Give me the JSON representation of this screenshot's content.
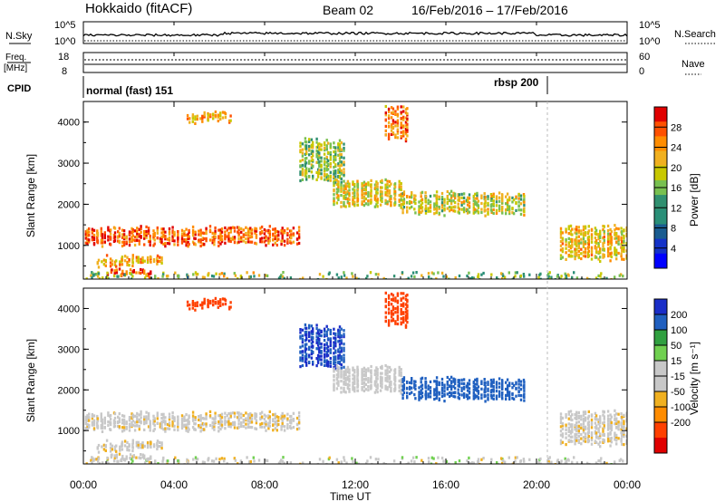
{
  "header": {
    "station": "Hokkaido (fitACF)",
    "beam": "Beam 02",
    "dates": "16/Feb/2016 – 17/Feb/2016"
  },
  "nsky": {
    "label": "N.Sky",
    "right_label": "N.Search",
    "ticks": [
      "10^5",
      "10^0"
    ],
    "right_ticks": [
      "10^5",
      "10^0"
    ]
  },
  "freq": {
    "label_line1": "Freq.",
    "label_line2": "[MHz]",
    "ticks": [
      "18",
      "8"
    ],
    "right_label": "Nave",
    "right_ticks": [
      "60",
      "0"
    ]
  },
  "cpid": {
    "label": "CPID",
    "segments": [
      {
        "name": "normal (fast) 151",
        "start_hour": 0
      },
      {
        "name": "rbsp 200",
        "start_hour": 20
      }
    ]
  },
  "power_panel": {
    "ylabel": "Slant Range [km]",
    "yticks": [
      "4000",
      "3000",
      "2000",
      "1000"
    ],
    "colorbar": {
      "label": "Power [dB]",
      "ticks": [
        "28",
        "24",
        "20",
        "16",
        "12",
        "8",
        "4"
      ],
      "colors": [
        "#e00000",
        "#ff5000",
        "#ff8c00",
        "#f0b020",
        "#c8c800",
        "#78c050",
        "#309070",
        "#2a8f78",
        "#1a5c90",
        "#1432c8",
        "#0000ff"
      ]
    }
  },
  "velocity_panel": {
    "ylabel": "Slant Range [km]",
    "yticks": [
      "4000",
      "3000",
      "2000",
      "1000"
    ],
    "colorbar": {
      "label": "Velocity [m s⁻¹]",
      "ticks": [
        "200",
        "100",
        "50",
        "15",
        "-15",
        "-50",
        "-100",
        "-200"
      ],
      "colors": [
        "#1a2ec8",
        "#2060c0",
        "#30a040",
        "#70d050",
        "#c8c8c8",
        "#c8c8c8",
        "#f0b020",
        "#ff8c00",
        "#ff4000",
        "#e00000"
      ]
    }
  },
  "xaxis": {
    "label": "Time UT",
    "ticks": [
      "00:00",
      "04:00",
      "08:00",
      "12:00",
      "16:00",
      "20:00",
      "00:00"
    ]
  },
  "chart_data": {
    "type": "heatmap",
    "title": "Hokkaido (fitACF) Beam 02 16/Feb/2016 – 17/Feb/2016",
    "xlabel": "Time UT",
    "ylabel": "Slant Range [km]",
    "x_range_hours": [
      0,
      24
    ],
    "y_range_km": [
      180,
      4500
    ],
    "power_range_db": [
      0,
      30
    ],
    "velocity_range_ms": [
      -250,
      250
    ],
    "echo_bands": [
      {
        "t0": 0.0,
        "t1": 9.5,
        "r0": 1050,
        "r1": 1450,
        "power": 25,
        "velocity": -5
      },
      {
        "t0": 0.5,
        "t1": 3.5,
        "r0": 550,
        "r1": 750,
        "power": 21,
        "velocity": -5
      },
      {
        "t0": 1.0,
        "t1": 3.0,
        "r0": 300,
        "r1": 400,
        "power": 27,
        "velocity": -5
      },
      {
        "t0": 4.5,
        "t1": 6.5,
        "r0": 4050,
        "r1": 4250,
        "power": 21,
        "velocity": -150
      },
      {
        "t0": 9.5,
        "t1": 11.5,
        "r0": 2600,
        "r1": 3600,
        "power": 16,
        "velocity": 200
      },
      {
        "t0": 11.0,
        "t1": 14.0,
        "r0": 2000,
        "r1": 2600,
        "power": 19,
        "velocity": 0
      },
      {
        "t0": 14.0,
        "t1": 19.5,
        "r0": 1800,
        "r1": 2300,
        "power": 18,
        "velocity": 120
      },
      {
        "t0": 13.3,
        "t1": 14.3,
        "r0": 3600,
        "r1": 4400,
        "power": 24,
        "velocity": -150
      },
      {
        "t0": 21.0,
        "t1": 24.0,
        "r0": 700,
        "r1": 1500,
        "power": 20,
        "velocity": -5
      }
    ]
  }
}
